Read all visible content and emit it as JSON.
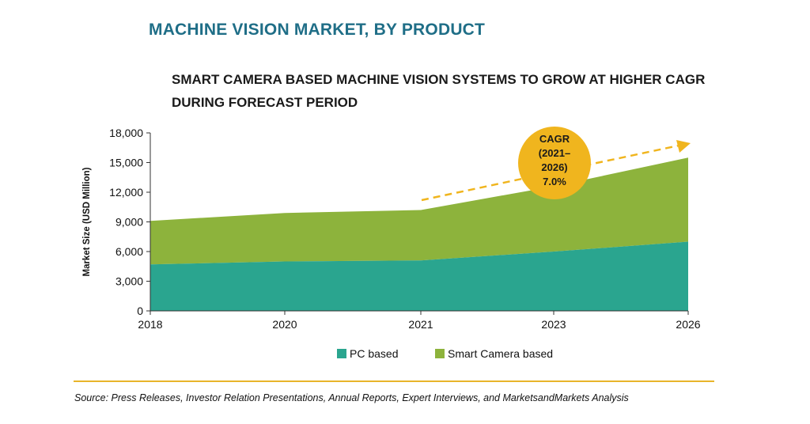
{
  "header": {
    "title": "MACHINE VISION MARKET, BY PRODUCT",
    "subtitle": "SMART CAMERA BASED MACHINE VISION SYSTEMS TO GROW AT HIGHER CAGR DURING FORECAST PERIOD"
  },
  "chart_data": {
    "type": "area",
    "stacked": true,
    "x": [
      "2018",
      "2020",
      "2021",
      "2023",
      "2026"
    ],
    "series": [
      {
        "name": "PC based",
        "values": [
          4700,
          5000,
          5100,
          6000,
          7000
        ],
        "color": "#2aa58f"
      },
      {
        "name": "Smart Camera based",
        "values": [
          4400,
          4900,
          5100,
          6600,
          8500
        ],
        "color": "#8db33c"
      }
    ],
    "ylabel": "Market Size (USD Million)",
    "ylim": [
      0,
      18000
    ],
    "yticks": [
      "0",
      "3,000",
      "6,000",
      "9,000",
      "12,000",
      "15,000",
      "18,000"
    ],
    "grid": false,
    "legend": "bottom",
    "annotation": {
      "lines": [
        "CAGR",
        "(2021–",
        "2026)",
        "7.0%"
      ],
      "color": "#f0b51e",
      "arrow_color": "#f0b51e"
    }
  },
  "footer": {
    "source": "Source: Press Releases, Investor Relation Presentations, Annual Reports, Expert Interviews, and MarketsandMarkets Analysis"
  }
}
